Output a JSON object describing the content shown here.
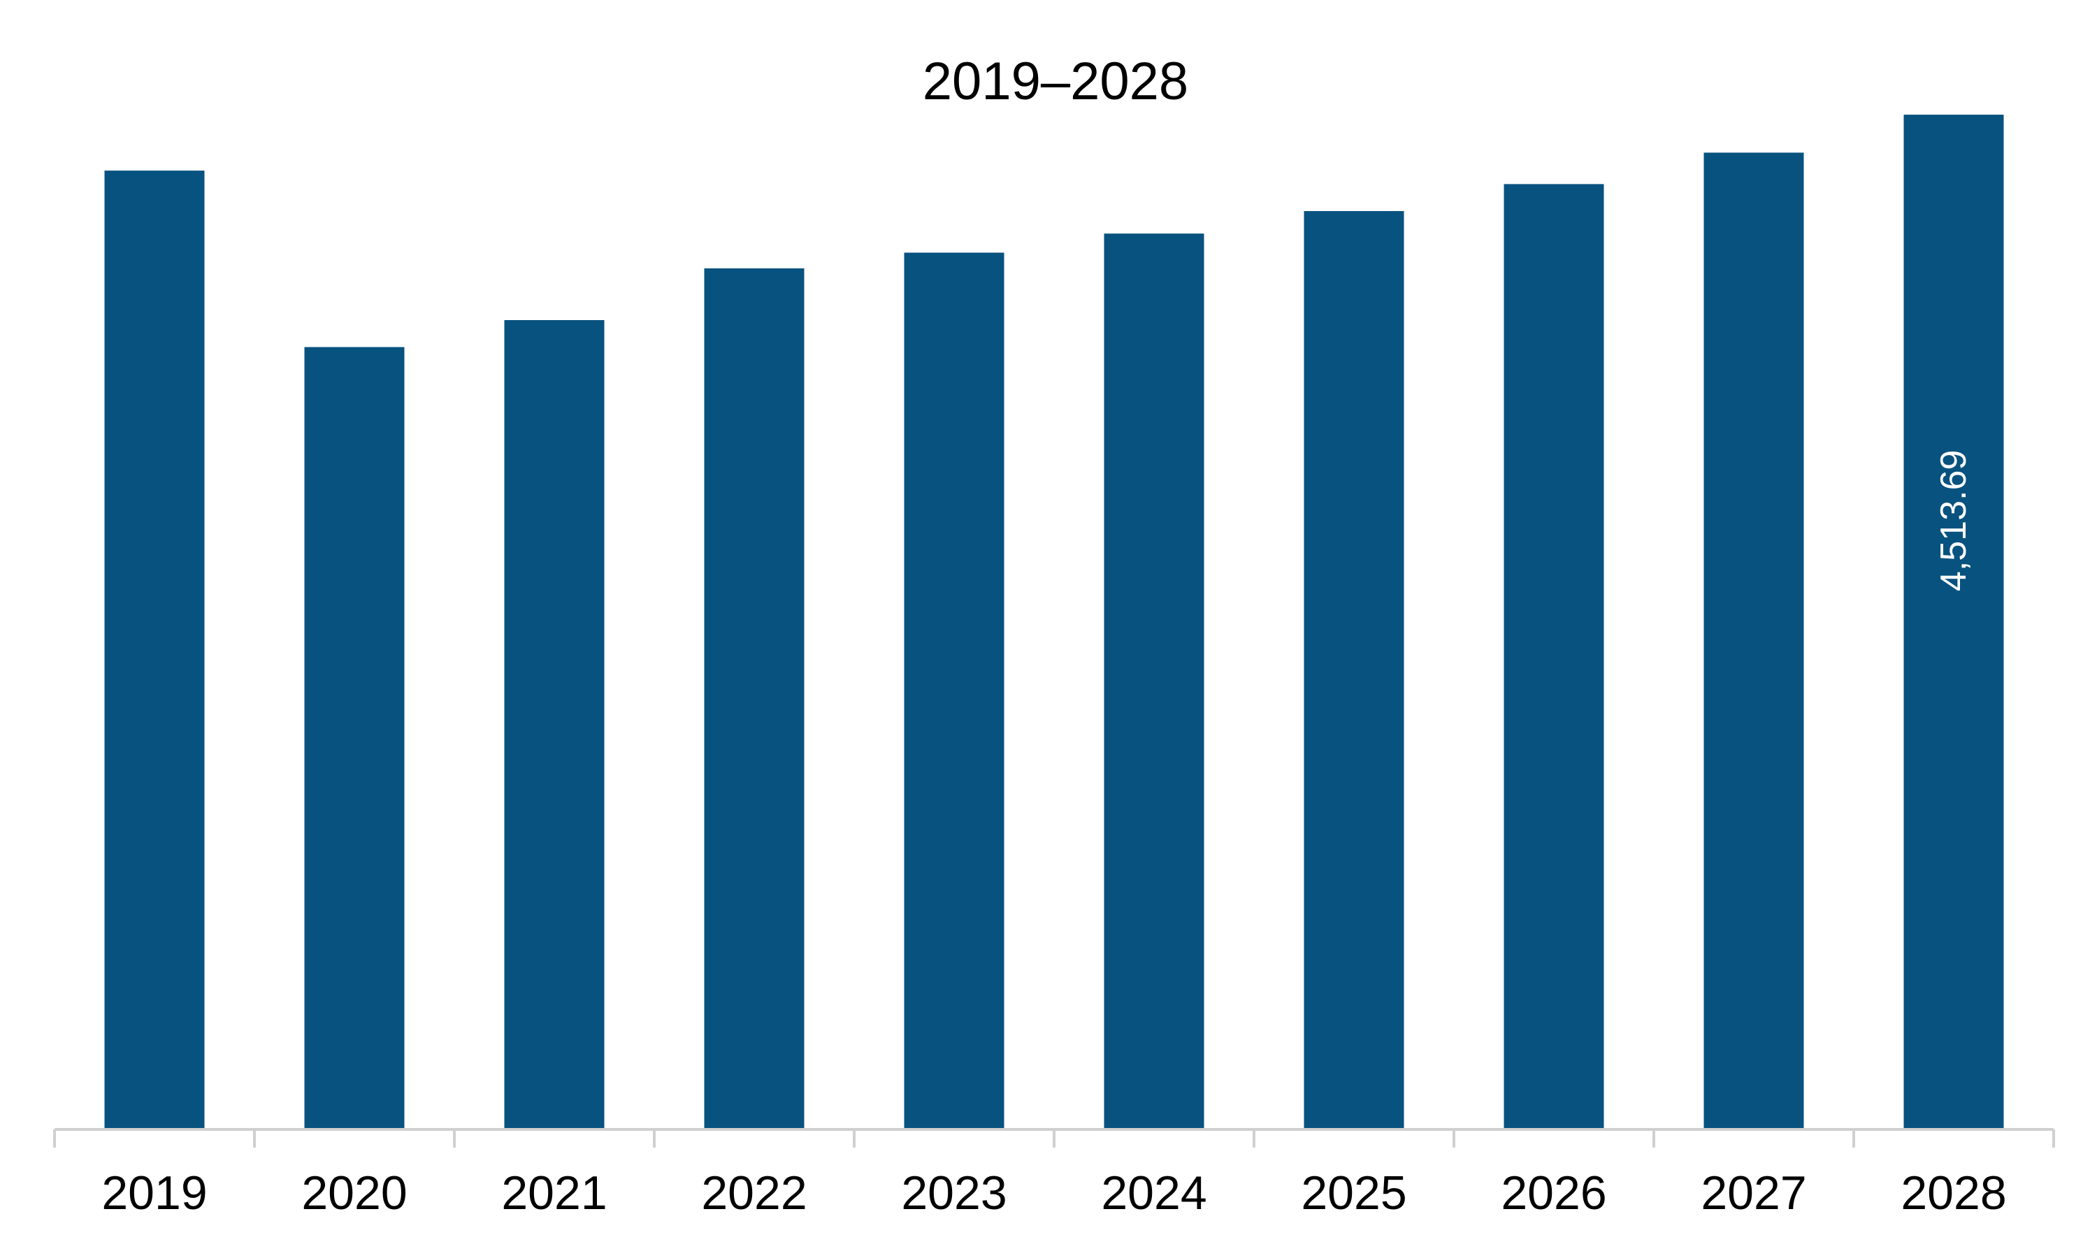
{
  "chart_data": {
    "type": "bar",
    "title": "2019–2028",
    "xlabel": "",
    "ylabel": "",
    "categories": [
      "2019",
      "2020",
      "2021",
      "2022",
      "2023",
      "2024",
      "2025",
      "2026",
      "2027",
      "2028"
    ],
    "values": [
      4265,
      3480,
      3600,
      3830,
      3900,
      3985,
      4085,
      4205,
      4345,
      4513.69
    ],
    "data_labels": [
      null,
      null,
      null,
      null,
      null,
      null,
      null,
      null,
      null,
      "4,513.69"
    ],
    "ylim": [
      0,
      4800
    ],
    "grid": false,
    "legend": "none",
    "colors": {
      "bar": "#08527F",
      "axis": "#d0d0d0",
      "label_on_bar": "#ffffff"
    }
  }
}
